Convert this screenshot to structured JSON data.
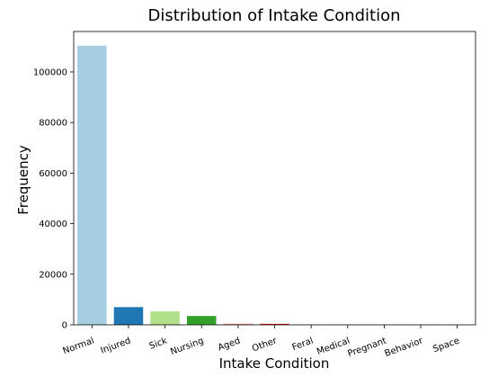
{
  "chart_data": {
    "type": "bar",
    "title": "Distribution of Intake Condition",
    "xlabel": "Intake Condition",
    "ylabel": "Frequency",
    "categories": [
      "Normal",
      "Injured",
      "Sick",
      "Nursing",
      "Aged",
      "Other",
      "Feral",
      "Medical",
      "Pregnant",
      "Behavior",
      "Space"
    ],
    "values": [
      110400,
      7000,
      5300,
      3500,
      450,
      400,
      100,
      80,
      60,
      50,
      10
    ],
    "colors": [
      "#a6cee3",
      "#1f78b4",
      "#b2df8a",
      "#33a02c",
      "#fb9a99",
      "#e31a1c",
      "#fdbf6f",
      "#ff7f00",
      "#cab2d6",
      "#6a3d9a",
      "#ffff99"
    ],
    "ylim": [
      0,
      116000
    ],
    "yticks": [
      0,
      20000,
      40000,
      60000,
      80000,
      100000
    ],
    "xtick_rotation_deg": -20,
    "grid": false,
    "legend": "none"
  }
}
